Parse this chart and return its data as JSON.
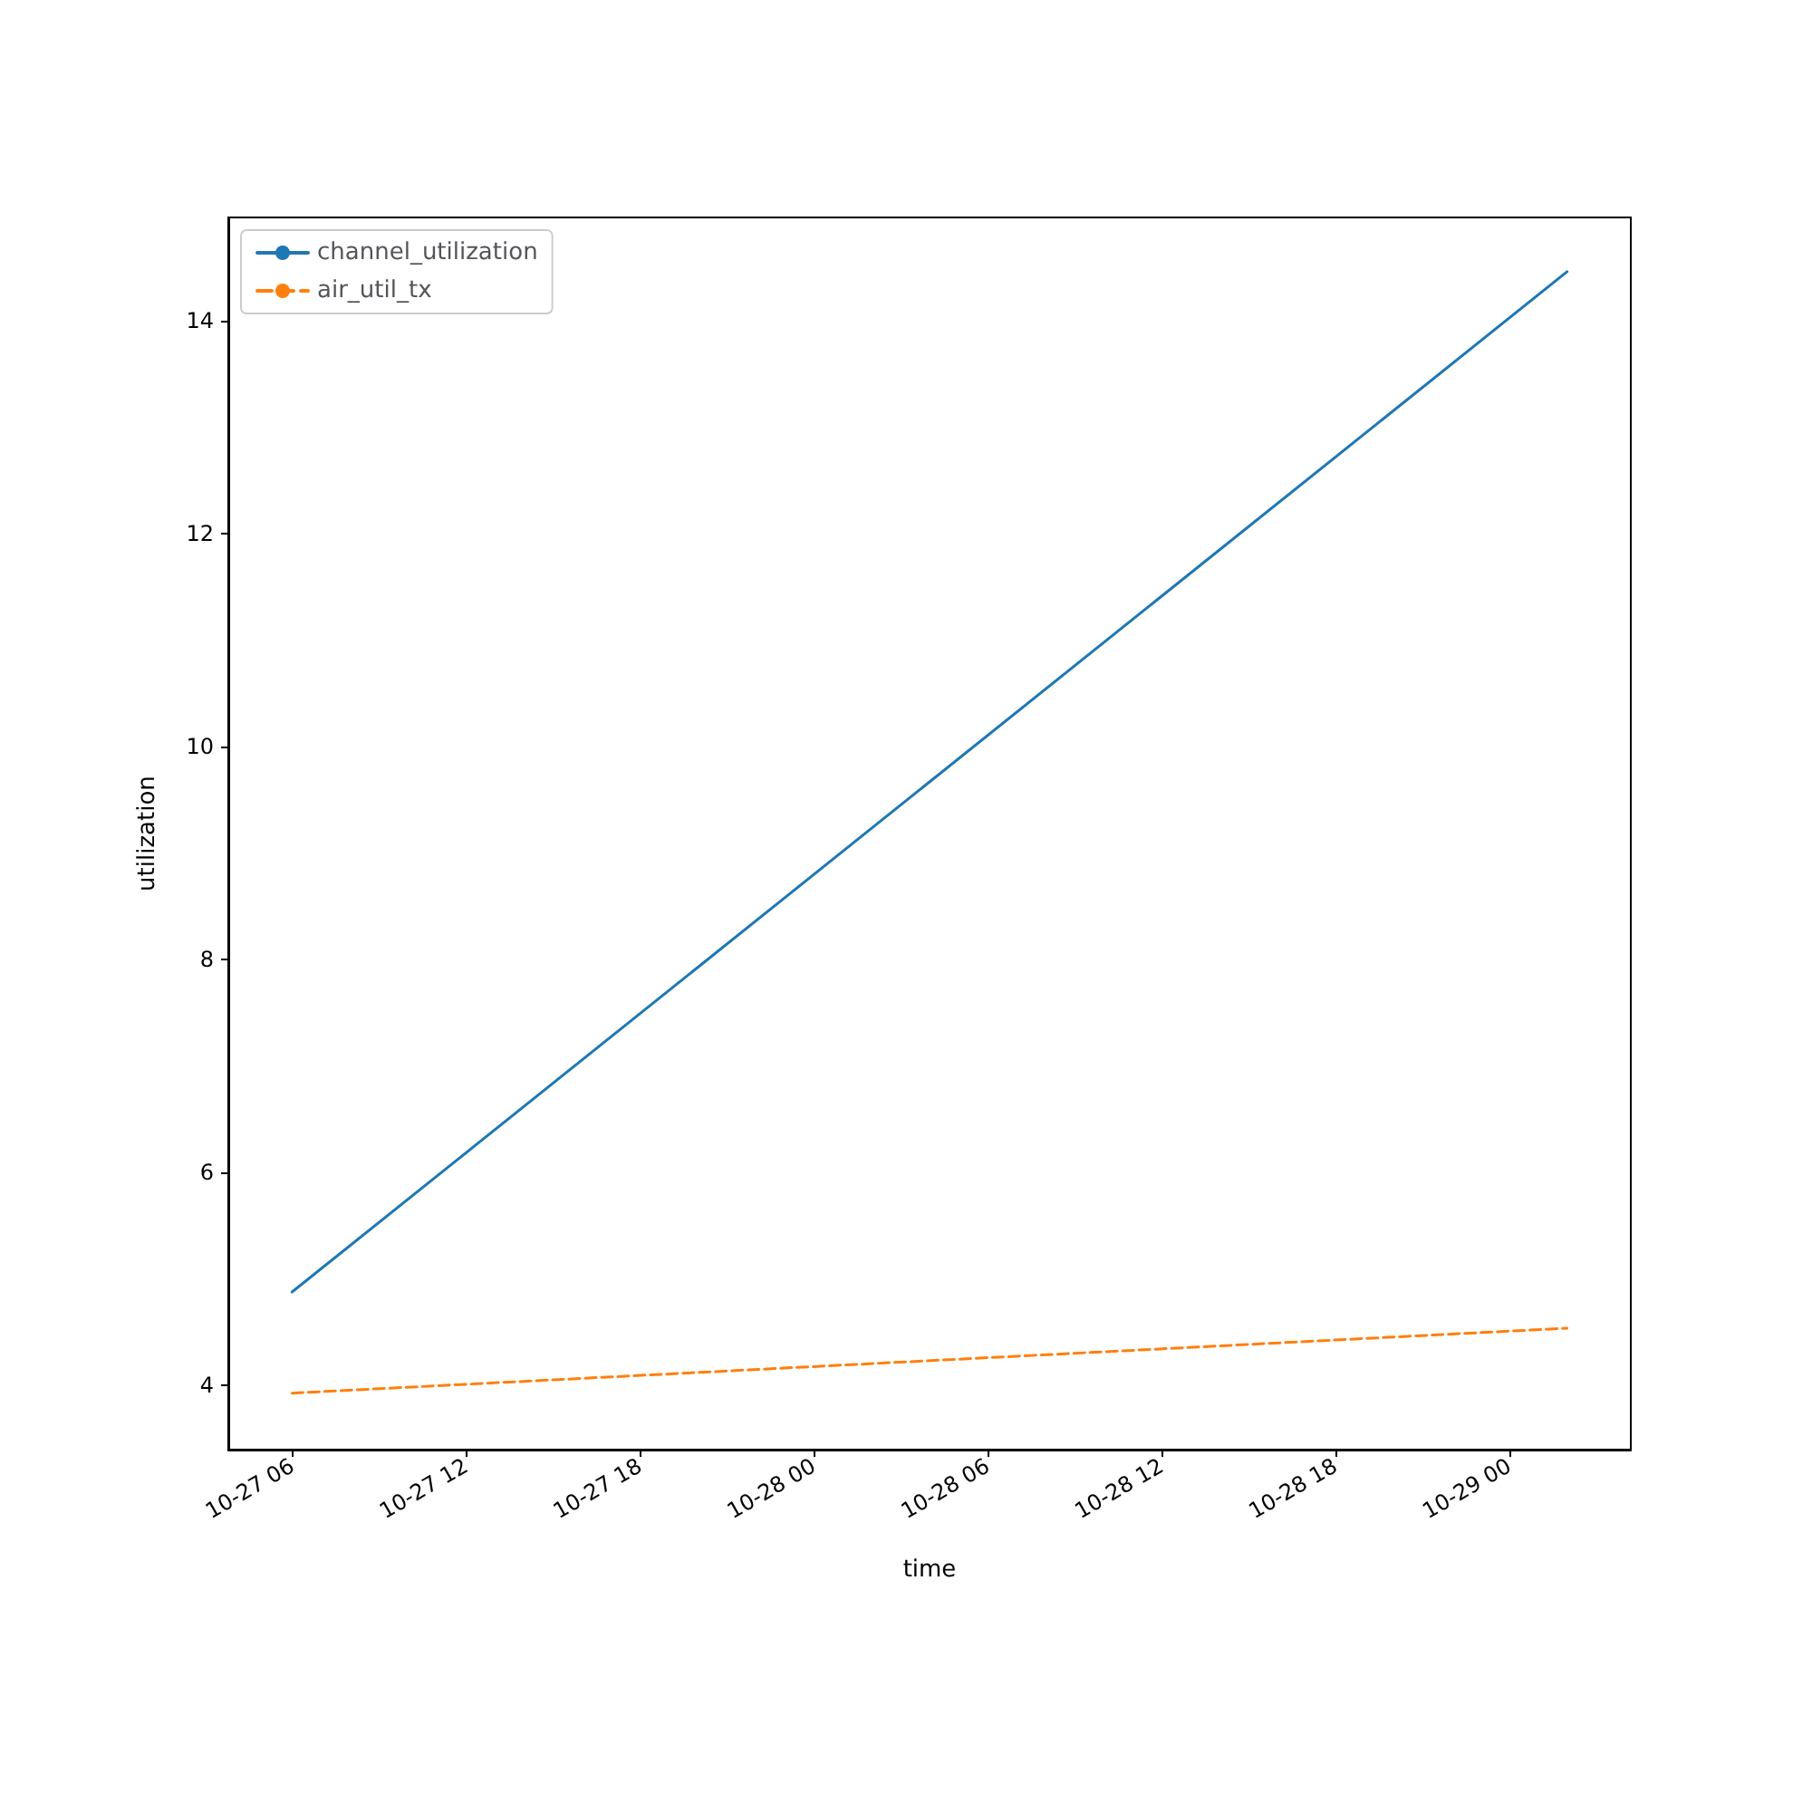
{
  "chart_data": {
    "type": "line",
    "xlabel": "time",
    "ylabel": "utilization",
    "x": [
      "--10-27T06:00",
      "--10-29T02:00"
    ],
    "series": [
      {
        "name": "channel_utilization",
        "color": "#1f77b4",
        "values": [
          4.88,
          14.46
        ],
        "line_style": "solid"
      },
      {
        "name": "air_util_tx",
        "color": "#ff7f0e",
        "values": [
          3.93,
          4.54
        ],
        "line_style": "dashed"
      }
    ],
    "xlim": [
      "--10-27T03:48",
      "--10-29T04:12"
    ],
    "xticks": [
      {
        "value": "--10-27T06:00",
        "label": "10-27 06"
      },
      {
        "value": "--10-27T12:00",
        "label": "10-27 12"
      },
      {
        "value": "--10-27T18:00",
        "label": "10-27 18"
      },
      {
        "value": "--10-28T00:00",
        "label": "10-28 00"
      },
      {
        "value": "--10-28T06:00",
        "label": "10-28 06"
      },
      {
        "value": "--10-28T12:00",
        "label": "10-28 12"
      },
      {
        "value": "--10-28T18:00",
        "label": "10-28 18"
      },
      {
        "value": "--10-29T00:00",
        "label": "10-29 00"
      }
    ],
    "ylim": [
      3.4,
      14.97
    ],
    "yticks": [
      4,
      6,
      8,
      10,
      12,
      14
    ],
    "grid": false,
    "legend": "top left",
    "marker": "none"
  }
}
